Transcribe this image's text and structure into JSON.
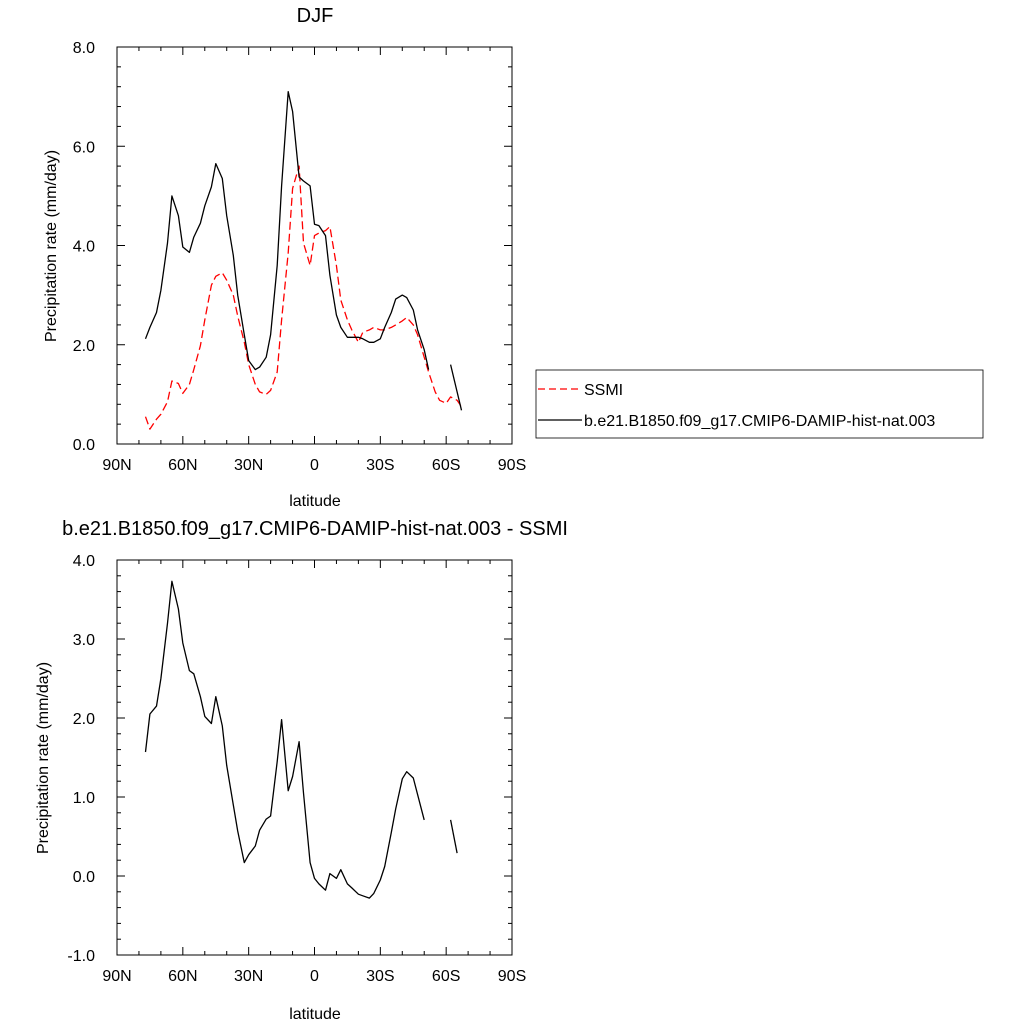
{
  "chart_data": [
    {
      "type": "line",
      "title": "DJF",
      "xlabel": "latitude",
      "ylabel": "Precipitation rate (mm/day)",
      "xlim": [
        -90,
        90
      ],
      "ylim": [
        0,
        8
      ],
      "x_ticks": [
        -90,
        -60,
        -30,
        0,
        30,
        60,
        90
      ],
      "x_tick_labels": [
        "90N",
        "60N",
        "30N",
        "0",
        "30S",
        "60S",
        "90S"
      ],
      "y_ticks": [
        0,
        2,
        4,
        6,
        8
      ],
      "y_tick_labels": [
        "0.0",
        "2.0",
        "4.0",
        "6.0",
        "8.0"
      ],
      "legend": {
        "position": "right"
      },
      "series": [
        {
          "name": "SSMI",
          "color": "#ff0000",
          "dash": "dashed",
          "segments": [
            [
              [
                -77,
                0.55
              ],
              [
                -75,
                0.3
              ],
              [
                -72,
                0.5
              ],
              [
                -70,
                0.6
              ],
              [
                -67,
                0.85
              ],
              [
                -65,
                1.27
              ],
              [
                -62,
                1.22
              ],
              [
                -60,
                1.02
              ],
              [
                -57,
                1.2
              ],
              [
                -55,
                1.5
              ],
              [
                -52,
                1.98
              ],
              [
                -50,
                2.5
              ],
              [
                -47,
                3.2
              ],
              [
                -45,
                3.38
              ],
              [
                -42,
                3.45
              ],
              [
                -40,
                3.3
              ],
              [
                -37,
                3.0
              ],
              [
                -35,
                2.58
              ],
              [
                -32,
                2.05
              ],
              [
                -30,
                1.6
              ],
              [
                -27,
                1.2
              ],
              [
                -25,
                1.05
              ],
              [
                -22,
                1.0
              ],
              [
                -20,
                1.08
              ],
              [
                -17,
                1.45
              ],
              [
                -15,
                2.5
              ],
              [
                -12,
                3.85
              ],
              [
                -10,
                5.15
              ],
              [
                -7,
                5.6
              ],
              [
                -5,
                4.05
              ],
              [
                -2,
                3.6
              ],
              [
                0,
                4.2
              ],
              [
                2,
                4.25
              ],
              [
                5,
                4.3
              ],
              [
                7,
                4.38
              ],
              [
                10,
                3.6
              ],
              [
                12,
                2.9
              ],
              [
                15,
                2.5
              ],
              [
                17,
                2.3
              ],
              [
                20,
                2.05
              ],
              [
                22,
                2.25
              ],
              [
                25,
                2.3
              ],
              [
                27,
                2.35
              ],
              [
                30,
                2.3
              ],
              [
                32,
                2.3
              ],
              [
                35,
                2.35
              ],
              [
                37,
                2.4
              ],
              [
                40,
                2.48
              ],
              [
                42,
                2.55
              ],
              [
                45,
                2.4
              ],
              [
                47,
                2.2
              ],
              [
                50,
                1.75
              ],
              [
                52,
                1.45
              ],
              [
                55,
                1.05
              ],
              [
                57,
                0.88
              ],
              [
                60,
                0.82
              ],
              [
                62,
                0.95
              ],
              [
                65,
                0.88
              ],
              [
                67,
                0.75
              ]
            ]
          ]
        },
        {
          "name": "b.e21.B1850.f09_g17.CMIP6-DAMIP-hist-nat.003",
          "color": "#000000",
          "dash": "solid",
          "segments": [
            [
              [
                -77,
                2.12
              ],
              [
                -75,
                2.35
              ],
              [
                -72,
                2.65
              ],
              [
                -70,
                3.1
              ],
              [
                -67,
                4.05
              ],
              [
                -65,
                5.0
              ],
              [
                -62,
                4.6
              ],
              [
                -60,
                3.97
              ],
              [
                -57,
                3.86
              ],
              [
                -55,
                4.17
              ],
              [
                -52,
                4.45
              ],
              [
                -50,
                4.8
              ],
              [
                -47,
                5.18
              ],
              [
                -45,
                5.65
              ],
              [
                -42,
                5.35
              ],
              [
                -40,
                4.6
              ],
              [
                -37,
                3.8
              ],
              [
                -35,
                3.0
              ],
              [
                -32,
                2.2
              ],
              [
                -30,
                1.68
              ],
              [
                -27,
                1.5
              ],
              [
                -25,
                1.55
              ],
              [
                -22,
                1.75
              ],
              [
                -20,
                2.2
              ],
              [
                -17,
                3.6
              ],
              [
                -15,
                5.2
              ],
              [
                -12,
                7.1
              ],
              [
                -10,
                6.7
              ],
              [
                -7,
                5.38
              ],
              [
                -5,
                5.3
              ],
              [
                -2,
                5.2
              ],
              [
                0,
                4.43
              ],
              [
                2,
                4.4
              ],
              [
                5,
                4.2
              ],
              [
                7,
                3.4
              ],
              [
                10,
                2.6
              ],
              [
                12,
                2.35
              ],
              [
                15,
                2.15
              ],
              [
                17,
                2.15
              ],
              [
                20,
                2.15
              ],
              [
                22,
                2.12
              ],
              [
                25,
                2.05
              ],
              [
                27,
                2.05
              ],
              [
                30,
                2.12
              ],
              [
                32,
                2.35
              ],
              [
                35,
                2.65
              ],
              [
                37,
                2.92
              ],
              [
                40,
                3.0
              ],
              [
                42,
                2.95
              ],
              [
                45,
                2.7
              ],
              [
                47,
                2.3
              ],
              [
                50,
                1.9
              ],
              [
                52,
                1.5
              ]
            ],
            [
              [
                62,
                1.6
              ],
              [
                65,
                1.05
              ],
              [
                67,
                0.68
              ]
            ]
          ]
        }
      ]
    },
    {
      "type": "line",
      "title": "b.e21.B1850.f09_g17.CMIP6-DAMIP-hist-nat.003 - SSMI",
      "xlabel": "latitude",
      "ylabel": "Precipitation rate (mm/day)",
      "xlim": [
        -90,
        90
      ],
      "ylim": [
        -1,
        4
      ],
      "x_ticks": [
        -90,
        -60,
        -30,
        0,
        30,
        60,
        90
      ],
      "x_tick_labels": [
        "90N",
        "60N",
        "30N",
        "0",
        "30S",
        "60S",
        "90S"
      ],
      "y_ticks": [
        -1,
        0,
        1,
        2,
        3,
        4
      ],
      "y_tick_labels": [
        "-1.0",
        "0.0",
        "1.0",
        "2.0",
        "3.0",
        "4.0"
      ],
      "series": [
        {
          "color": "#000000",
          "dash": "solid",
          "segments": [
            [
              [
                -77,
                1.57
              ],
              [
                -75,
                2.05
              ],
              [
                -72,
                2.15
              ],
              [
                -70,
                2.5
              ],
              [
                -67,
                3.2
              ],
              [
                -65,
                3.73
              ],
              [
                -62,
                3.38
              ],
              [
                -60,
                2.95
              ],
              [
                -57,
                2.6
              ],
              [
                -55,
                2.56
              ],
              [
                -52,
                2.27
              ],
              [
                -50,
                2.02
              ],
              [
                -47,
                1.93
              ],
              [
                -45,
                2.27
              ],
              [
                -42,
                1.9
              ],
              [
                -40,
                1.4
              ],
              [
                -37,
                0.9
              ],
              [
                -35,
                0.57
              ],
              [
                -32,
                0.17
              ],
              [
                -30,
                0.27
              ],
              [
                -27,
                0.38
              ],
              [
                -25,
                0.58
              ],
              [
                -22,
                0.72
              ],
              [
                -20,
                0.76
              ],
              [
                -17,
                1.45
              ],
              [
                -15,
                1.98
              ],
              [
                -12,
                1.08
              ],
              [
                -10,
                1.26
              ],
              [
                -7,
                1.7
              ],
              [
                -5,
                1.05
              ],
              [
                -2,
                0.17
              ],
              [
                0,
                -0.03
              ],
              [
                2,
                -0.1
              ],
              [
                5,
                -0.18
              ],
              [
                7,
                0.03
              ],
              [
                10,
                -0.03
              ],
              [
                12,
                0.08
              ],
              [
                15,
                -0.1
              ],
              [
                17,
                -0.15
              ],
              [
                20,
                -0.23
              ],
              [
                22,
                -0.25
              ],
              [
                25,
                -0.28
              ],
              [
                27,
                -0.22
              ],
              [
                30,
                -0.05
              ],
              [
                32,
                0.12
              ],
              [
                35,
                0.55
              ],
              [
                37,
                0.85
              ],
              [
                40,
                1.23
              ],
              [
                42,
                1.32
              ],
              [
                45,
                1.24
              ],
              [
                47,
                1.03
              ],
              [
                50,
                0.71
              ]
            ],
            [
              [
                62,
                0.71
              ],
              [
                65,
                0.29
              ]
            ]
          ]
        }
      ]
    }
  ]
}
